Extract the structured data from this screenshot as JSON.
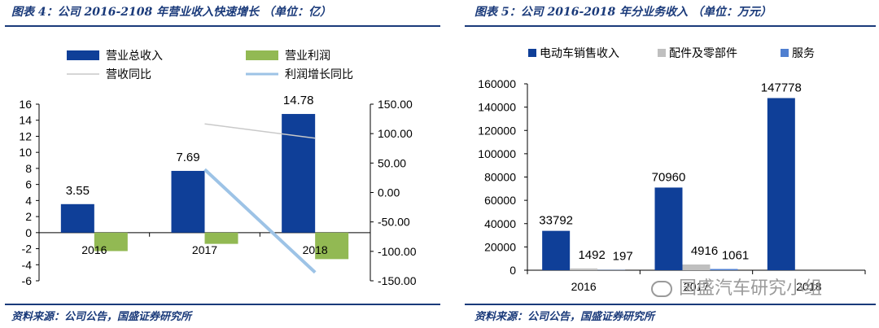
{
  "chart_data": [
    {
      "type": "bar",
      "title": "图表 4：公司 2016-2108 年营业收入快速增长 （单位：亿）",
      "source": "资料来源：公司公告，国盛证券研究所",
      "categories": [
        "2016",
        "2017",
        "2018"
      ],
      "series": [
        {
          "name": "营业总收入",
          "type": "bar",
          "axis": "left",
          "color": "#0f3f98",
          "values": [
            3.55,
            7.69,
            14.78
          ],
          "labels": [
            "3.55",
            "7.69",
            "14.78"
          ]
        },
        {
          "name": "营业利润",
          "type": "bar",
          "axis": "left",
          "color": "#92b953",
          "values": [
            -2.3,
            -1.4,
            -3.3
          ]
        },
        {
          "name": "营收同比",
          "type": "line",
          "axis": "right",
          "color": "#c9c9c9",
          "values": [
            null,
            116.6,
            92.2
          ]
        },
        {
          "name": "利润增长同比",
          "type": "line",
          "axis": "right",
          "color": "#9dc3e6",
          "values": [
            null,
            39.1,
            -135.7
          ]
        }
      ],
      "ylim": [
        -6,
        16
      ],
      "yticks": [
        "16",
        "14",
        "12",
        "10",
        "8",
        "6",
        "4",
        "2",
        "0",
        "-2",
        "-4",
        "-6"
      ],
      "y2lim": [
        -150,
        150
      ],
      "y2ticks": [
        "150.00",
        "100.00",
        "50.00",
        "0.00",
        "-50.00",
        "-100.00",
        "-150.00"
      ],
      "legend": "top"
    },
    {
      "type": "bar",
      "title": "图表 5：公司 2016-2018 年分业务收入 （单位：万元）",
      "source": "资料来源：公司公告，国盛证券研究所",
      "categories": [
        "2016",
        "2017",
        "2018"
      ],
      "series": [
        {
          "name": "电动车销售收入",
          "color": "#0f3f98",
          "values": [
            33792,
            70960,
            147778
          ],
          "labels": [
            "33792",
            "70960",
            "147778"
          ]
        },
        {
          "name": "配件及零部件",
          "color": "#bfbfbf",
          "values": [
            1492,
            4916,
            0
          ],
          "labels": [
            "1492",
            "4916",
            ""
          ]
        },
        {
          "name": "服务",
          "color": "#4f7fd0",
          "values": [
            197,
            1061,
            0
          ],
          "labels": [
            "197",
            "1061",
            ""
          ]
        }
      ],
      "ylim": [
        0,
        160000
      ],
      "yticks": [
        "160000",
        "140000",
        "120000",
        "100000",
        "80000",
        "60000",
        "40000",
        "20000",
        "0"
      ],
      "legend": "top"
    }
  ],
  "watermark": "国盛汽车研究小组"
}
